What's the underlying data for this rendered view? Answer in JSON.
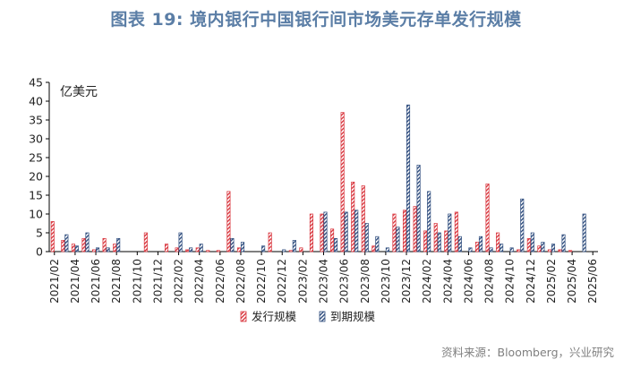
{
  "title": "图表 19: 境内银行中国银行间市场美元存单发行规模",
  "source": "资料来源：Bloomberg，兴业研究",
  "colors": {
    "issue": "#d9363e",
    "maturity": "#2f4d7e",
    "title": "#5b7ea6"
  },
  "chart_data": {
    "type": "bar",
    "unit_label": "亿美元",
    "ylim": [
      0,
      45
    ],
    "yticks": [
      0,
      5,
      10,
      15,
      20,
      25,
      30,
      35,
      40,
      45
    ],
    "xtick_labels": [
      "2021/02",
      "2021/04",
      "2021/06",
      "2021/08",
      "2021/10",
      "2021/12",
      "2022/02",
      "2022/04",
      "2022/06",
      "2022/08",
      "2022/10",
      "2022/12",
      "2023/02",
      "2023/04",
      "2023/06",
      "2023/08",
      "2023/10",
      "2023/12",
      "2024/02",
      "2024/04",
      "2024/06",
      "2024/08",
      "2024/10",
      "2024/12",
      "2025/02",
      "2025/04",
      "2025/06"
    ],
    "categories": [
      "2021/02",
      "2021/03",
      "2021/04",
      "2021/05",
      "2021/06",
      "2021/07",
      "2021/08",
      "2021/09",
      "2021/10",
      "2021/11",
      "2021/12",
      "2022/01",
      "2022/02",
      "2022/03",
      "2022/04",
      "2022/05",
      "2022/06",
      "2022/07",
      "2022/08",
      "2022/09",
      "2022/10",
      "2022/11",
      "2022/12",
      "2023/01",
      "2023/02",
      "2023/03",
      "2023/04",
      "2023/05",
      "2023/06",
      "2023/07",
      "2023/08",
      "2023/09",
      "2023/10",
      "2023/11",
      "2023/12",
      "2024/01",
      "2024/02",
      "2024/03",
      "2024/04",
      "2024/05",
      "2024/06",
      "2024/07",
      "2024/08",
      "2024/09",
      "2024/10",
      "2024/11",
      "2024/12",
      "2025/01",
      "2025/02",
      "2025/03",
      "2025/04",
      "2025/05",
      "2025/06"
    ],
    "series": [
      {
        "name": "发行规模",
        "pattern": "red-hatch",
        "values": [
          8,
          3,
          2,
          3.5,
          0.5,
          3.5,
          2,
          0,
          0,
          5,
          0,
          2,
          1,
          0.5,
          1,
          0.3,
          0.3,
          16,
          1,
          0,
          0,
          5,
          0,
          0.3,
          1,
          10,
          10,
          6,
          37,
          18.5,
          17.5,
          1.5,
          0,
          10,
          11,
          12,
          5.5,
          7.5,
          5.5,
          10.5,
          0,
          2.5,
          18,
          5,
          0,
          0.5,
          3.5,
          1.5,
          0.5,
          0.5,
          0.3,
          0,
          0
        ]
      },
      {
        "name": "到期规模",
        "pattern": "blue-hatch",
        "values": [
          0,
          4.5,
          1.5,
          5,
          1,
          1,
          3.5,
          0,
          0,
          0,
          0,
          0,
          5,
          1,
          2,
          0,
          0,
          3.5,
          2.5,
          0,
          1.5,
          0,
          0.5,
          3,
          0,
          0,
          10.5,
          3.5,
          10.5,
          11,
          7.5,
          4,
          1,
          6.5,
          39,
          23,
          16,
          5,
          10,
          4,
          1,
          4,
          1,
          2,
          1,
          14,
          5,
          2.5,
          2,
          4.5,
          0,
          10,
          0
        ]
      }
    ]
  }
}
